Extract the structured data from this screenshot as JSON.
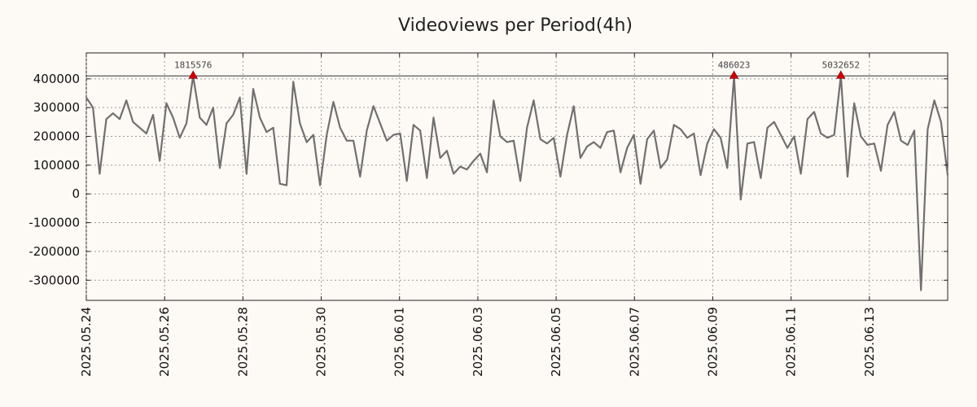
{
  "chart_data": {
    "type": "line",
    "title": "Videoviews per Period(4h)",
    "xlabel": "",
    "ylabel": "",
    "grid": true,
    "x_start": "2025.05.24",
    "x_end": "2025.06.15",
    "xlim": [
      "2025.05.24",
      "2025.06.15"
    ],
    "ylim": [
      -370000,
      490000
    ],
    "x_tick_labels": [
      "2025.05.24",
      "2025.05.26",
      "2025.05.28",
      "2025.05.30",
      "2025.06.01",
      "2025.06.03",
      "2025.06.05",
      "2025.06.07",
      "2025.06.09",
      "2025.06.11",
      "2025.06.13"
    ],
    "y_ticks": [
      400000,
      300000,
      200000,
      100000,
      0,
      -100000,
      -200000,
      -300000
    ],
    "y_tick_labels": [
      "400000",
      "300000",
      "200000",
      "100000",
      "0",
      "-100000",
      "-200000",
      "-300000"
    ],
    "reference_line": 410000,
    "series": [
      {
        "color": "#707070",
        "values": [
          335000,
          300000,
          70000,
          260000,
          280000,
          260000,
          325000,
          250000,
          230000,
          210000,
          275000,
          115000,
          315000,
          265000,
          195000,
          245000,
          410000,
          265000,
          240000,
          300000,
          90000,
          245000,
          275000,
          335000,
          70000,
          365000,
          265000,
          215000,
          230000,
          35000,
          30000,
          390000,
          245000,
          180000,
          205000,
          30000,
          205000,
          320000,
          230000,
          185000,
          185000,
          60000,
          220000,
          305000,
          245000,
          185000,
          205000,
          210000,
          45000,
          240000,
          220000,
          55000,
          265000,
          125000,
          150000,
          70000,
          95000,
          85000,
          115000,
          140000,
          75000,
          325000,
          200000,
          180000,
          185000,
          45000,
          230000,
          325000,
          190000,
          175000,
          195000,
          60000,
          205000,
          305000,
          125000,
          165000,
          180000,
          160000,
          215000,
          220000,
          75000,
          160000,
          205000,
          35000,
          190000,
          220000,
          90000,
          120000,
          240000,
          225000,
          195000,
          210000,
          65000,
          175000,
          225000,
          195000,
          90000,
          410000,
          -20000,
          175000,
          180000,
          55000,
          230000,
          250000,
          205000,
          160000,
          200000,
          70000,
          260000,
          285000,
          210000,
          195000,
          205000,
          410000,
          60000,
          315000,
          200000,
          170000,
          175000,
          80000,
          240000,
          285000,
          185000,
          170000,
          220000,
          -335000,
          225000,
          325000,
          250000,
          65000
        ]
      }
    ],
    "annotations": [
      {
        "label": "1815576",
        "index": 16,
        "y": 410000
      },
      {
        "label": "486023",
        "index": 97,
        "y": 410000
      },
      {
        "label": "5032652",
        "index": 113,
        "y": 410000
      }
    ]
  }
}
